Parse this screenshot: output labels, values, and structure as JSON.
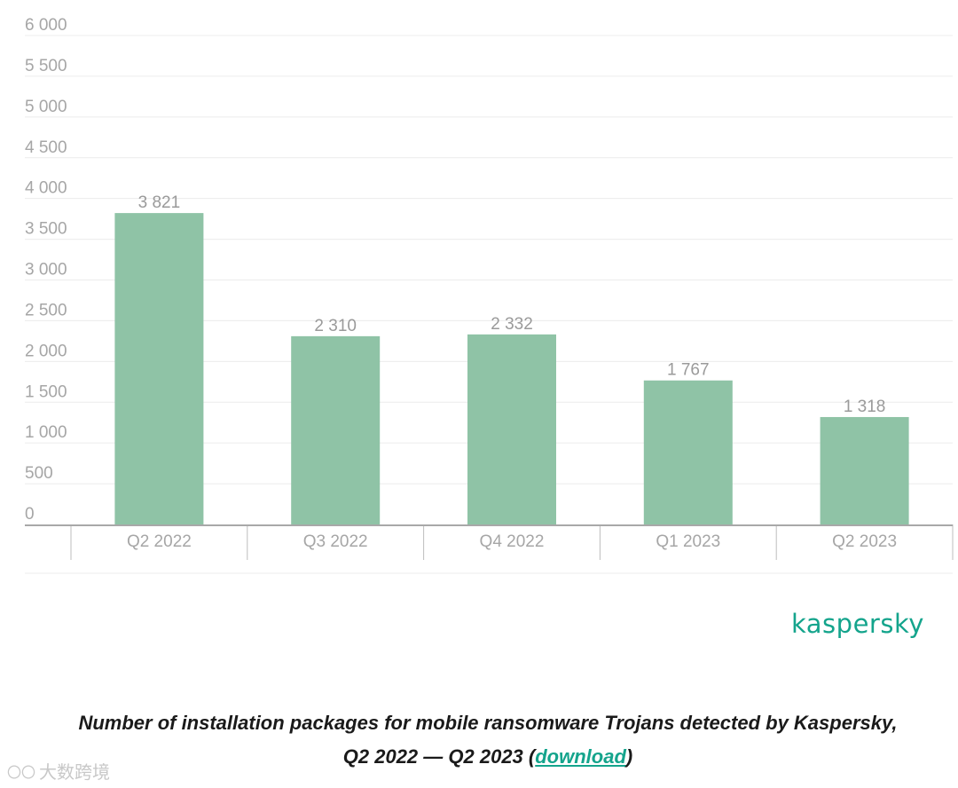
{
  "chart_data": {
    "type": "bar",
    "categories": [
      "Q2 2022",
      "Q3 2022",
      "Q4 2022",
      "Q1 2023",
      "Q2 2023"
    ],
    "values": [
      3821,
      2310,
      2332,
      1767,
      1318
    ],
    "data_labels": [
      "3 821",
      "2 310",
      "2 332",
      "1 767",
      "1 318"
    ],
    "yticks": [
      0,
      500,
      1000,
      1500,
      2000,
      2500,
      3000,
      3500,
      4000,
      4500,
      5000,
      5500,
      6000
    ],
    "ytick_labels": [
      "0",
      "500",
      "1 000",
      "1 500",
      "2 000",
      "2 500",
      "3 000",
      "3 500",
      "4 000",
      "4 500",
      "5 000",
      "5 500",
      "6 000"
    ],
    "ylim": [
      0,
      6000
    ],
    "grid": true,
    "bar_color": "#8fc3a6"
  },
  "brand": {
    "logo_text": "kaspersky",
    "color": "#14a48c"
  },
  "caption": {
    "line1": "Number of installation packages for mobile ransomware Trojans detected by Kaspersky,",
    "line2_prefix": "Q2 2022 — Q2 2023 (",
    "link_text": "download",
    "line2_suffix": ")"
  },
  "watermark": {
    "mark": "〇〇",
    "text": "大数跨境"
  }
}
